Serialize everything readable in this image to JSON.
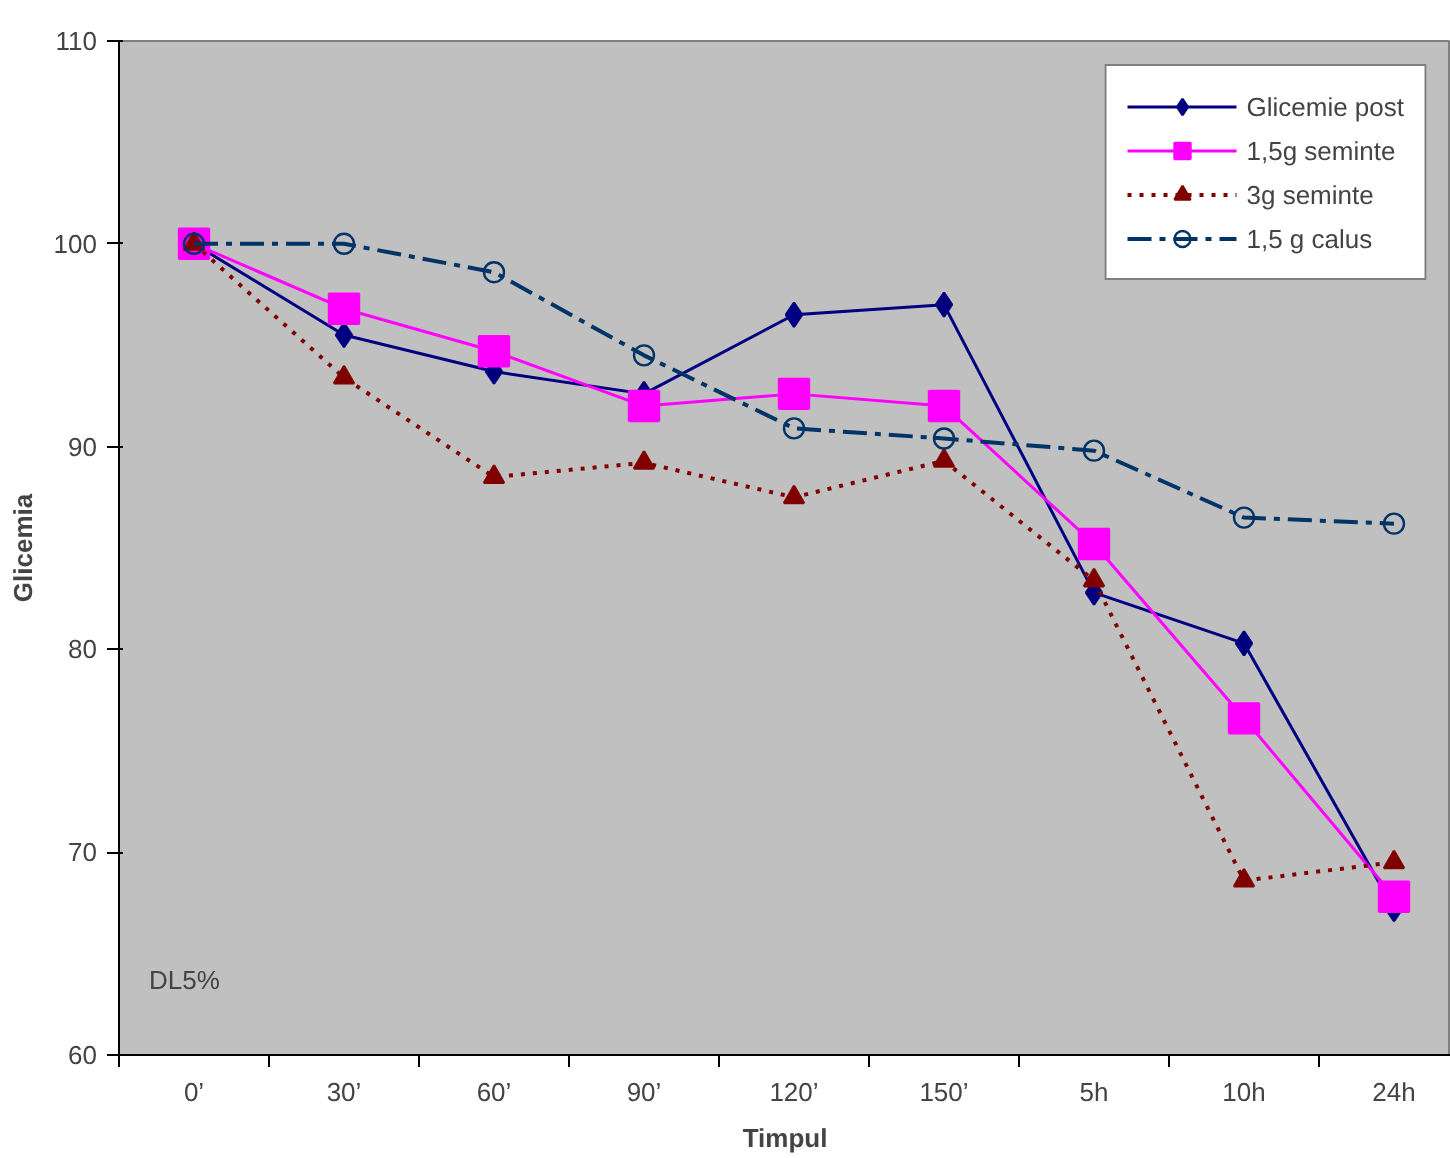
{
  "chart_data": {
    "type": "line",
    "xlabel": "Timpul",
    "ylabel": "Glicemia",
    "categories": [
      "0’",
      "30’",
      "60’",
      "90’",
      "120’",
      "150’",
      "5h",
      "10h",
      "24h"
    ],
    "series": [
      {
        "name": "Glicemie post",
        "color": "#000080",
        "marker": "diamond",
        "line_style": "solid",
        "values": [
          100,
          95.5,
          93.7,
          92.6,
          96.5,
          97.0,
          82.8,
          80.3,
          67.2
        ]
      },
      {
        "name": "1,5g seminte",
        "color": "#ff00ff",
        "marker": "square",
        "line_style": "solid",
        "values": [
          100,
          96.8,
          94.7,
          92.0,
          92.6,
          92.0,
          85.2,
          76.6,
          67.8
        ]
      },
      {
        "name": "3g seminte",
        "color": "#800000",
        "marker": "triangle",
        "line_style": "dotted",
        "values": [
          100,
          93.4,
          88.5,
          89.2,
          87.5,
          89.3,
          83.4,
          68.6,
          69.5
        ]
      },
      {
        "name": "1,5 g calus",
        "color": "#003366",
        "marker": "circle",
        "line_style": "dashdot",
        "values": [
          100,
          100,
          98.6,
          94.5,
          90.9,
          90.4,
          89.8,
          86.5,
          86.2
        ]
      }
    ],
    "ylim": [
      60,
      110
    ],
    "yticks": [
      60,
      70,
      80,
      90,
      100,
      110
    ],
    "grid": false,
    "legend": "top right",
    "annotations": [
      "DL5%"
    ]
  }
}
